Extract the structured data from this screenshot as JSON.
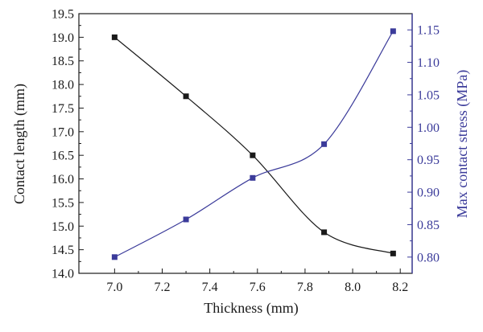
{
  "chart_data": {
    "type": "line",
    "xlabel": "Thickness (mm)",
    "ylabel_left": "Contact length (mm)",
    "ylabel_right": "Max contact stress (MPa)",
    "xlim": [
      6.85,
      8.25
    ],
    "ylim_left": [
      14.0,
      19.5
    ],
    "ylim_right": [
      0.775,
      1.175
    ],
    "x_ticks": [
      "7.0",
      "7.2",
      "7.4",
      "7.6",
      "7.8",
      "8.0",
      "8.2"
    ],
    "y_left_ticks": [
      "14.0",
      "14.5",
      "15.0",
      "15.5",
      "16.0",
      "16.5",
      "17.0",
      "17.5",
      "18.0",
      "18.5",
      "19.0",
      "19.5"
    ],
    "y_right_ticks": [
      "0.80",
      "0.85",
      "0.90",
      "0.95",
      "1.00",
      "1.05",
      "1.10",
      "1.15"
    ],
    "grid": false,
    "series": [
      {
        "axis": "left",
        "color": "#1a1a1a",
        "marker": "square",
        "x": [
          7.0,
          7.3,
          7.58,
          7.88,
          8.17
        ],
        "values": [
          19.0,
          17.75,
          16.5,
          14.87,
          14.42
        ]
      },
      {
        "axis": "right",
        "color": "#3b3b9a",
        "marker": "square",
        "x": [
          7.0,
          7.3,
          7.58,
          7.88,
          8.17
        ],
        "values": [
          0.8,
          0.858,
          0.922,
          0.974,
          1.148
        ]
      }
    ]
  }
}
